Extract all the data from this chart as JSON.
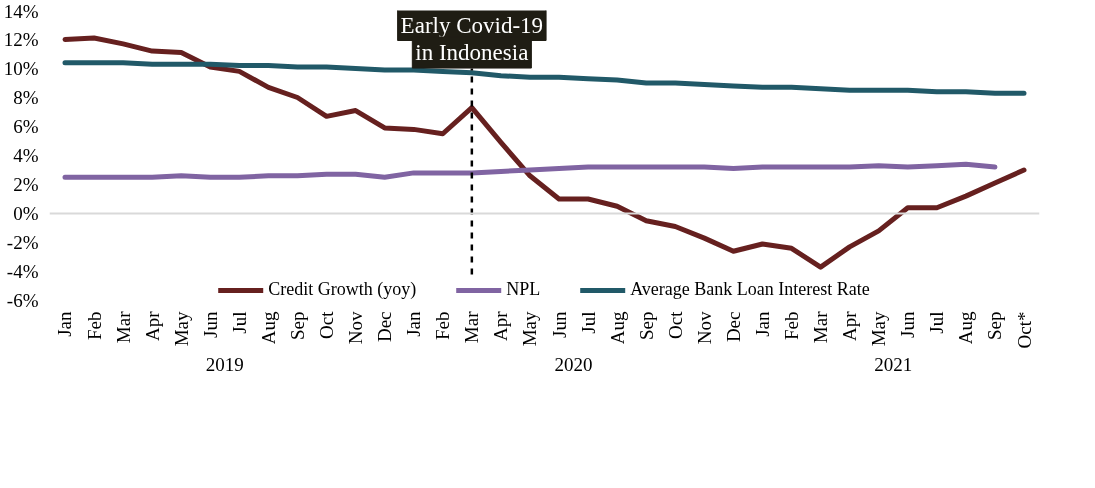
{
  "chart_data": {
    "type": "line",
    "x": [
      "2019-01",
      "2019-02",
      "2019-03",
      "2019-04",
      "2019-05",
      "2019-06",
      "2019-07",
      "2019-08",
      "2019-09",
      "2019-10",
      "2019-11",
      "2019-12",
      "2020-01",
      "2020-02",
      "2020-03",
      "2020-04",
      "2020-05",
      "2020-06",
      "2020-07",
      "2020-08",
      "2020-09",
      "2020-10",
      "2020-11",
      "2020-12",
      "2021-01",
      "2021-02",
      "2021-03",
      "2021-04",
      "2021-05",
      "2021-06",
      "2021-07",
      "2021-08",
      "2021-09",
      "2021-10"
    ],
    "xlim": [
      "2018-12-15",
      "2021-10-17"
    ],
    "xticks": [
      {
        "value": "2019-01",
        "label": "Jan"
      },
      {
        "value": "2019-02",
        "label": "Feb"
      },
      {
        "value": "2019-03",
        "label": "Mar"
      },
      {
        "value": "2019-04",
        "label": "Apr"
      },
      {
        "value": "2019-05",
        "label": "May"
      },
      {
        "value": "2019-06",
        "label": "Jun"
      },
      {
        "value": "2019-07",
        "label": "Jul"
      },
      {
        "value": "2019-08",
        "label": "Aug"
      },
      {
        "value": "2019-09",
        "label": "Sep"
      },
      {
        "value": "2019-10",
        "label": "Oct"
      },
      {
        "value": "2019-11",
        "label": "Nov"
      },
      {
        "value": "2019-12",
        "label": "Dec"
      },
      {
        "value": "2020-01",
        "label": "Jan"
      },
      {
        "value": "2020-02",
        "label": "Feb"
      },
      {
        "value": "2020-03",
        "label": "Mar"
      },
      {
        "value": "2020-04",
        "label": "Apr"
      },
      {
        "value": "2020-05",
        "label": "May"
      },
      {
        "value": "2020-06",
        "label": "Jun"
      },
      {
        "value": "2020-07",
        "label": "Jul"
      },
      {
        "value": "2020-08",
        "label": "Aug"
      },
      {
        "value": "2020-09",
        "label": "Sep"
      },
      {
        "value": "2020-10",
        "label": "Oct"
      },
      {
        "value": "2020-11",
        "label": "Nov"
      },
      {
        "value": "2020-12",
        "label": "Dec"
      },
      {
        "value": "2021-01",
        "label": "Jan"
      },
      {
        "value": "2021-02",
        "label": "Feb"
      },
      {
        "value": "2021-03",
        "label": "Mar"
      },
      {
        "value": "2021-04",
        "label": "Apr"
      },
      {
        "value": "2021-05",
        "label": "May"
      },
      {
        "value": "2021-06",
        "label": "Jun"
      },
      {
        "value": "2021-07",
        "label": "Jul"
      },
      {
        "value": "2021-08",
        "label": "Aug"
      },
      {
        "value": "2021-09",
        "label": "Sep"
      },
      {
        "value": "2021-10",
        "label": "Oct*"
      }
    ],
    "ylim": [
      -6,
      14
    ],
    "yticks": [
      {
        "value": -6,
        "label": "-6%"
      },
      {
        "value": -4,
        "label": "-4%"
      },
      {
        "value": -2,
        "label": "-2%"
      },
      {
        "value": 0,
        "label": "0%"
      },
      {
        "value": 2,
        "label": "2%"
      },
      {
        "value": 4,
        "label": "4%"
      },
      {
        "value": 6,
        "label": "6%"
      },
      {
        "value": 8,
        "label": "8%"
      },
      {
        "value": 10,
        "label": "10%"
      },
      {
        "value": 12,
        "label": "12%"
      },
      {
        "value": 14,
        "label": "14%"
      }
    ],
    "series": [
      {
        "name": "Credit Growth (yoy)",
        "color": "#66201f",
        "values": [
          12.0,
          12.1,
          11.7,
          11.2,
          11.1,
          10.1,
          9.8,
          8.7,
          8.0,
          6.7,
          7.1,
          5.9,
          5.8,
          5.5,
          7.3,
          4.9,
          2.6,
          1.0,
          1.0,
          0.5,
          -0.5,
          -0.9,
          -1.7,
          -2.6,
          -2.1,
          -2.4,
          -3.7,
          -2.3,
          -1.2,
          0.4,
          0.4,
          1.2,
          2.1,
          3.0
        ]
      },
      {
        "name": "NPL",
        "color": "#8064a2",
        "values": [
          2.5,
          2.5,
          2.5,
          2.5,
          2.6,
          2.5,
          2.5,
          2.6,
          2.6,
          2.7,
          2.7,
          2.5,
          2.8,
          2.8,
          2.8,
          2.9,
          3.0,
          3.1,
          3.2,
          3.2,
          3.2,
          3.2,
          3.2,
          3.1,
          3.2,
          3.2,
          3.2,
          3.2,
          3.3,
          3.2,
          3.3,
          3.4,
          3.2,
          null
        ]
      },
      {
        "name": "Average Bank Loan Interest Rate",
        "color": "#215968",
        "values": [
          10.4,
          10.4,
          10.4,
          10.3,
          10.3,
          10.3,
          10.2,
          10.2,
          10.1,
          10.1,
          10.0,
          9.9,
          9.9,
          9.8,
          9.7,
          9.5,
          9.4,
          9.4,
          9.3,
          9.2,
          9.0,
          9.0,
          8.9,
          8.8,
          8.7,
          8.7,
          8.6,
          8.5,
          8.5,
          8.5,
          8.4,
          8.4,
          8.3,
          8.3
        ]
      }
    ],
    "ref_lines": [
      {
        "axis": "x",
        "value": "2020-03",
        "label": "Early Covid-19\nin Indonesia",
        "color": "#000000",
        "line_style": "dashed"
      }
    ],
    "annotations": [
      "2019",
      "2020",
      "2021"
    ],
    "legend": "bottom",
    "grid": false,
    "line_style": "solid",
    "marker": "none"
  }
}
